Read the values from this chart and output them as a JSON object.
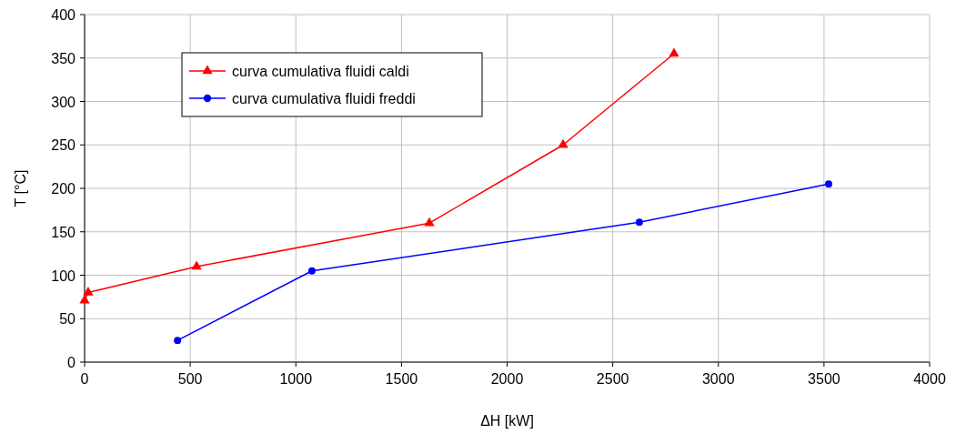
{
  "chart_data": {
    "type": "line",
    "xlabel": "ΔH [kW]",
    "ylabel": "T [°C]",
    "xlim": [
      0,
      4000
    ],
    "ylim": [
      0,
      400
    ],
    "xticks": [
      0,
      500,
      1000,
      1500,
      2000,
      2500,
      3000,
      3500,
      4000
    ],
    "yticks": [
      0,
      50,
      100,
      150,
      200,
      250,
      300,
      350,
      400
    ],
    "grid": true,
    "legend": "top left",
    "series": [
      {
        "name": "curva cumulativa fluidi caldi",
        "color": "#ff0000",
        "marker": "triangle",
        "x": [
          0,
          17,
          530,
          1632,
          2265,
          2790
        ],
        "values": [
          71,
          80,
          110,
          160,
          250,
          355
        ]
      },
      {
        "name": "curva cumulativa fluidi freddi",
        "color": "#0000ff",
        "marker": "circle",
        "x": [
          440,
          1076,
          2626,
          3522
        ],
        "values": [
          25,
          105,
          161,
          205
        ]
      }
    ]
  }
}
